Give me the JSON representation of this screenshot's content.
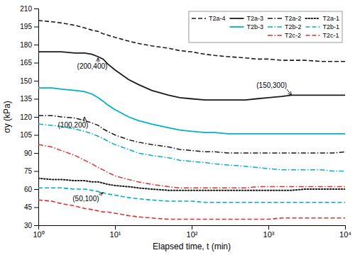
{
  "chart_data": {
    "type": "line",
    "xlabel": "Elapsed time, t (min)",
    "ylabel": "σy (kPa)",
    "log": "x",
    "grid": false,
    "legend": "upper right",
    "xlim": [
      1,
      10000
    ],
    "ylim": [
      30,
      210
    ],
    "xticks": [
      {
        "value": 1,
        "label": "10⁰"
      },
      {
        "value": 10,
        "label": "10¹"
      },
      {
        "value": 100,
        "label": "10²"
      },
      {
        "value": 1000,
        "label": "10³"
      },
      {
        "value": 10000,
        "label": "10⁴"
      }
    ],
    "yticks": [
      30,
      45,
      60,
      75,
      90,
      105,
      120,
      135,
      150,
      165,
      180,
      195,
      210
    ],
    "x": [
      1,
      1.5,
      2,
      3,
      4,
      5,
      6,
      7,
      8,
      10,
      15,
      20,
      30,
      50,
      70,
      100,
      150,
      200,
      300,
      500,
      700,
      1000,
      1500,
      2000,
      3000,
      5000,
      7000,
      10000
    ],
    "series": [
      {
        "name": "T2a-4",
        "color": "#1a1a1a",
        "line_style": "dashed",
        "values": [
          200,
          199,
          198,
          196,
          194,
          192,
          191,
          189,
          188,
          186,
          183,
          181,
          179,
          177,
          175,
          174,
          172,
          171,
          170,
          169,
          168,
          168,
          167,
          167,
          167,
          166,
          166,
          166
        ]
      },
      {
        "name": "T2a-3",
        "color": "#1a1a1a",
        "line_style": "solid",
        "values": [
          174,
          174,
          174,
          173,
          173,
          172,
          170,
          168,
          164,
          159,
          151,
          147,
          142,
          138,
          136,
          135,
          134,
          134,
          134,
          134,
          135,
          136,
          137,
          138,
          138,
          138,
          138,
          138
        ]
      },
      {
        "name": "T2a-2",
        "color": "#1a1a1a",
        "line_style": "dashdot",
        "values": [
          121,
          121,
          120,
          119,
          117,
          115,
          113,
          110,
          108,
          105,
          101,
          99,
          97,
          95,
          93,
          92,
          91,
          91,
          90,
          90,
          90,
          90,
          90,
          90,
          90,
          90,
          90,
          91
        ]
      },
      {
        "name": "T2a-1",
        "color": "#1a1a1a",
        "line_style": "dotted",
        "values": [
          69,
          68,
          68,
          67,
          67,
          66,
          66,
          65,
          64,
          63,
          62,
          61,
          60,
          59,
          59,
          59,
          59,
          59,
          59,
          59,
          59,
          59,
          59,
          59,
          60,
          60,
          60,
          60
        ]
      },
      {
        "name": "T2b-3",
        "color": "#00b0c8",
        "line_style": "solid",
        "values": [
          144,
          144,
          143,
          142,
          141,
          139,
          136,
          133,
          130,
          126,
          120,
          117,
          114,
          111,
          109,
          108,
          107,
          107,
          106,
          106,
          106,
          106,
          106,
          106,
          106,
          106,
          106,
          106
        ]
      },
      {
        "name": "T2b-2",
        "color": "#00b0c8",
        "line_style": "dashdot",
        "values": [
          114,
          113,
          112,
          110,
          108,
          106,
          104,
          102,
          100,
          97,
          93,
          90,
          88,
          86,
          84,
          83,
          82,
          81,
          80,
          79,
          78,
          77,
          76,
          76,
          76,
          76,
          75,
          75
        ]
      },
      {
        "name": "T2b-1",
        "color": "#00b0c8",
        "line_style": "dashed",
        "values": [
          61,
          61,
          61,
          60,
          60,
          59,
          58,
          57,
          56,
          55,
          53,
          52,
          51,
          50,
          50,
          50,
          49,
          49,
          49,
          49,
          49,
          49,
          49,
          49,
          49,
          49,
          49,
          49
        ]
      },
      {
        "name": "T2c-2",
        "color": "#e03030",
        "line_style": "dashdot",
        "values": [
          97,
          95,
          92,
          88,
          84,
          81,
          78,
          76,
          74,
          71,
          68,
          66,
          64,
          62,
          61,
          61,
          61,
          61,
          61,
          61,
          62,
          62,
          62,
          62,
          62,
          62,
          62,
          62
        ]
      },
      {
        "name": "T2c-1",
        "color": "#e03030",
        "line_style": "dashed",
        "values": [
          51,
          50,
          48,
          46,
          44,
          43,
          42,
          41,
          41,
          40,
          38,
          37,
          36,
          35,
          35,
          35,
          35,
          35,
          35,
          35,
          35,
          35,
          36,
          36,
          36,
          36,
          36,
          36
        ]
      }
    ],
    "annotations": [
      {
        "text": "(200,400)",
        "x": 6,
        "y": 169,
        "text_x": 3.2,
        "text_y": 160
      },
      {
        "text": "(150,300)",
        "x": 2000,
        "y": 138,
        "text_x": 700,
        "text_y": 144
      },
      {
        "text": "(100,200)",
        "x": 4,
        "y": 120,
        "text_x": 1.8,
        "text_y": 111
      },
      {
        "text": "(50,100)",
        "x": 7,
        "y": 57,
        "text_x": 2.8,
        "text_y": 50
      }
    ]
  }
}
